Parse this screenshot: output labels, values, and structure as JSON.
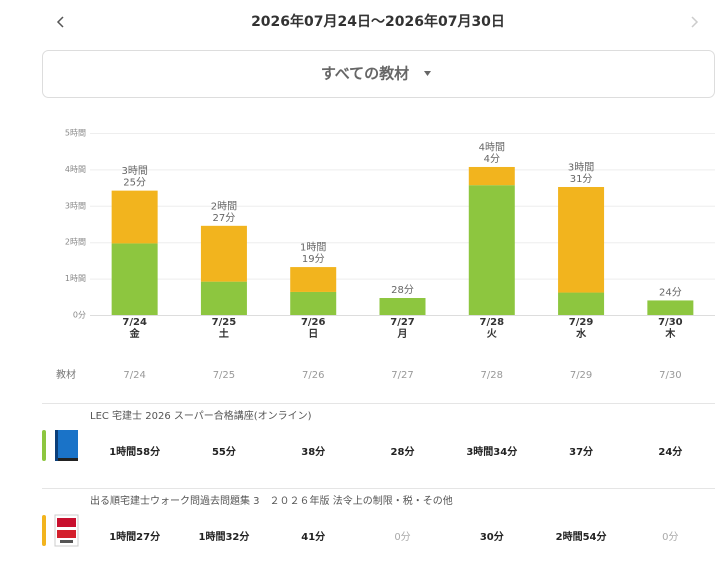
{
  "header": {
    "date_range": "2026年07月24日〜2026年07月30日"
  },
  "filter": {
    "label": "すべての教材"
  },
  "chart_data": {
    "type": "bar",
    "stacked": true,
    "grid": true,
    "categories": [
      "7/24",
      "7/25",
      "7/26",
      "7/27",
      "7/28",
      "7/29",
      "7/30"
    ],
    "weekdays": [
      "金",
      "土",
      "日",
      "月",
      "火",
      "水",
      "木"
    ],
    "ylim": [
      0,
      300
    ],
    "yticks": [
      {
        "value": 0,
        "label": "0分"
      },
      {
        "value": 60,
        "label": "1時間"
      },
      {
        "value": 120,
        "label": "2時間"
      },
      {
        "value": 180,
        "label": "3時間"
      },
      {
        "value": 240,
        "label": "4時間"
      },
      {
        "value": 300,
        "label": "5時間"
      }
    ],
    "series": [
      {
        "name": "LEC 宅建士 2026 スーパー合格講座(オンライン)",
        "color": "#8dc63f",
        "values": [
          118,
          55,
          38,
          28,
          214,
          37,
          24
        ],
        "value_labels": [
          "1時間58分",
          "55分",
          "38分",
          "28分",
          "3時間34分",
          "37分",
          "24分"
        ]
      },
      {
        "name": "出る順宅建士ウォーク問過去問題集 3　２０２６年版 法令上の制限・税・その他",
        "color": "#f2b41e",
        "values": [
          87,
          92,
          41,
          0,
          30,
          174,
          0
        ],
        "value_labels": [
          "1時間27分",
          "1時間32分",
          "41分",
          "0分",
          "30分",
          "2時間54分",
          "0分"
        ]
      }
    ],
    "totals": {
      "values": [
        205,
        147,
        79,
        28,
        244,
        211,
        24
      ],
      "value_labels": [
        [
          "3時間",
          "25分"
        ],
        [
          "2時間",
          "27分"
        ],
        [
          "1時間",
          "19分"
        ],
        [
          "28分"
        ],
        [
          "4時間",
          "4分"
        ],
        [
          "3時間",
          "31分"
        ],
        [
          "24分"
        ]
      ]
    }
  },
  "table": {
    "header": "教材"
  }
}
